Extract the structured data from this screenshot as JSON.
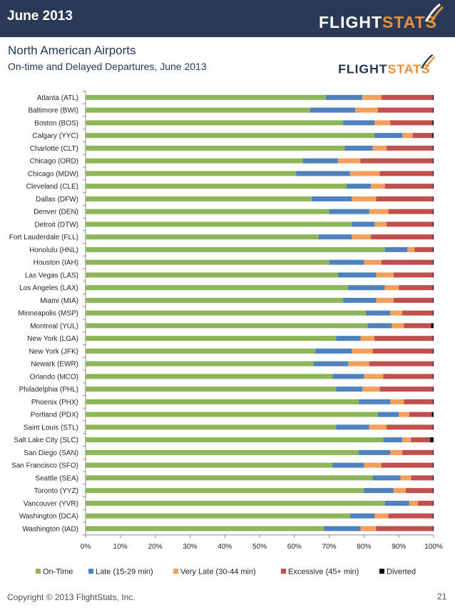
{
  "page": {
    "month_label": "June 2013",
    "brand": {
      "part1": "FLIGHT",
      "part2": "STATS"
    },
    "copyright": "Copyright © 2013 FlightStats, Inc.",
    "page_number": "21"
  },
  "chart_data": {
    "type": "bar",
    "orientation": "horizontal",
    "stacked": true,
    "title": "North American Airports",
    "subtitle": "On-time and Delayed Departures, June 2013",
    "xlim": [
      0,
      100
    ],
    "x_ticks": [
      "0%",
      "10%",
      "20%",
      "30%",
      "40%",
      "50%",
      "60%",
      "70%",
      "80%",
      "90%",
      "100%"
    ],
    "legend_position": "bottom",
    "grid": false,
    "categories": [
      "Atlanta (ATL)",
      "Baltimore (BWI)",
      "Boston (BOS)",
      "Calgary (YYC)",
      "Charlotte (CLT)",
      "Chicago (ORD)",
      "Chicago (MDW)",
      "Cleveland (CLE)",
      "Dallas (DFW)",
      "Denver (DEN)",
      "Detroit (DTW)",
      "Fort Lauderdale (FLL)",
      "Honolulu (HNL)",
      "Houston (IAH)",
      "Las Vegas (LAS)",
      "Los Angeles (LAX)",
      "Miami (MIA)",
      "Minneapolis (MSP)",
      "Montreal (YUL)",
      "New York (LGA)",
      "New York (JFK)",
      "Newark (EWR)",
      "Orlando (MCO)",
      "Philadelphia (PHL)",
      "Phoenix (PHX)",
      "Portland (PDX)",
      "Saint Louis (STL)",
      "Salt Lake City (SLC)",
      "San Diego (SAN)",
      "San Francisco (SFO)",
      "Seattle (SEA)",
      "Toronto (YYZ)",
      "Vancouver (YVR)",
      "Washington (DCA)",
      "Washington (IAD)"
    ],
    "series": [
      {
        "name": "On-Time",
        "color": "#8fb55a",
        "values": [
          69.0,
          64.5,
          74.0,
          83.0,
          74.5,
          62.5,
          60.5,
          75.0,
          65.0,
          70.0,
          76.5,
          67.0,
          86.0,
          70.0,
          72.5,
          75.5,
          74.0,
          80.5,
          81.0,
          72.0,
          66.0,
          65.5,
          71.0,
          72.0,
          78.5,
          84.0,
          72.0,
          85.5,
          78.5,
          71.0,
          82.5,
          80.0,
          86.0,
          76.0,
          68.5
        ]
      },
      {
        "name": "Late (15-29 min)",
        "color": "#4f81bd",
        "values": [
          10.5,
          13.0,
          9.0,
          8.0,
          8.0,
          10.0,
          15.5,
          7.0,
          11.5,
          11.5,
          6.5,
          9.5,
          6.5,
          10.0,
          11.0,
          10.5,
          9.5,
          7.0,
          7.0,
          7.0,
          10.5,
          10.0,
          9.0,
          7.5,
          9.0,
          6.0,
          9.5,
          5.5,
          9.0,
          9.0,
          8.0,
          8.5,
          7.0,
          7.0,
          10.5
        ]
      },
      {
        "name": "Very Late (30-44 min)",
        "color": "#f2a05c",
        "values": [
          5.5,
          6.5,
          4.5,
          3.0,
          4.0,
          6.5,
          8.5,
          4.0,
          7.0,
          5.5,
          3.5,
          5.5,
          2.0,
          5.0,
          5.0,
          4.0,
          5.0,
          3.5,
          3.5,
          4.0,
          6.0,
          6.0,
          5.5,
          5.0,
          4.0,
          3.0,
          5.0,
          2.5,
          3.5,
          5.0,
          3.0,
          3.5,
          2.5,
          4.0,
          4.5
        ]
      },
      {
        "name": "Excessive (45+ min)",
        "color": "#c0504d",
        "values": [
          14.8,
          15.8,
          12.2,
          5.7,
          13.3,
          20.8,
          15.3,
          13.8,
          16.3,
          12.8,
          13.3,
          17.8,
          5.3,
          14.8,
          11.3,
          9.8,
          11.3,
          8.8,
          7.8,
          16.8,
          17.3,
          18.3,
          14.3,
          15.3,
          8.3,
          6.5,
          13.3,
          5.5,
          8.8,
          14.8,
          6.3,
          7.8,
          4.3,
          12.8,
          16.3
        ]
      },
      {
        "name": "Diverted",
        "color": "#000000",
        "values": [
          0.2,
          0.2,
          0.3,
          0.3,
          0.2,
          0.2,
          0.2,
          0.2,
          0.2,
          0.2,
          0.2,
          0.2,
          0.2,
          0.2,
          0.2,
          0.2,
          0.2,
          0.2,
          0.7,
          0.2,
          0.2,
          0.2,
          0.2,
          0.2,
          0.2,
          0.5,
          0.2,
          1.0,
          0.2,
          0.2,
          0.2,
          0.2,
          0.2,
          0.2,
          0.2
        ]
      }
    ]
  }
}
